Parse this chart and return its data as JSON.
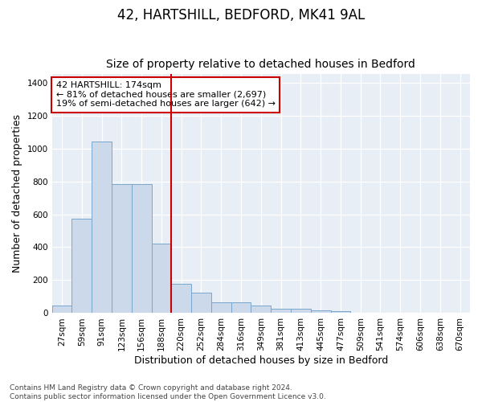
{
  "title": "42, HARTSHILL, BEDFORD, MK41 9AL",
  "subtitle": "Size of property relative to detached houses in Bedford",
  "xlabel": "Distribution of detached houses by size in Bedford",
  "ylabel": "Number of detached properties",
  "bar_labels": [
    "27sqm",
    "59sqm",
    "91sqm",
    "123sqm",
    "156sqm",
    "188sqm",
    "220sqm",
    "252sqm",
    "284sqm",
    "316sqm",
    "349sqm",
    "381sqm",
    "413sqm",
    "445sqm",
    "477sqm",
    "509sqm",
    "541sqm",
    "574sqm",
    "606sqm",
    "638sqm",
    "670sqm"
  ],
  "bar_values": [
    48,
    572,
    1040,
    785,
    785,
    420,
    180,
    125,
    65,
    65,
    48,
    25,
    25,
    18,
    13,
    0,
    0,
    0,
    0,
    0,
    0
  ],
  "bar_color": "#ccd9ea",
  "bar_edgecolor": "#7ba7cc",
  "vline_x": 5.5,
  "vline_color": "#cc0000",
  "annotation_text": "42 HARTSHILL: 174sqm\n← 81% of detached houses are smaller (2,697)\n19% of semi-detached houses are larger (642) →",
  "annotation_box_facecolor": "#ffffff",
  "annotation_box_edgecolor": "#cc0000",
  "ylim": [
    0,
    1450
  ],
  "yticks": [
    0,
    200,
    400,
    600,
    800,
    1000,
    1200,
    1400
  ],
  "footer": "Contains HM Land Registry data © Crown copyright and database right 2024.\nContains public sector information licensed under the Open Government Licence v3.0.",
  "fig_bg_color": "#ffffff",
  "plot_bg_color": "#e8eef5",
  "title_fontsize": 12,
  "subtitle_fontsize": 10,
  "axis_label_fontsize": 9,
  "tick_fontsize": 7.5,
  "annotation_fontsize": 8,
  "footer_fontsize": 6.5
}
